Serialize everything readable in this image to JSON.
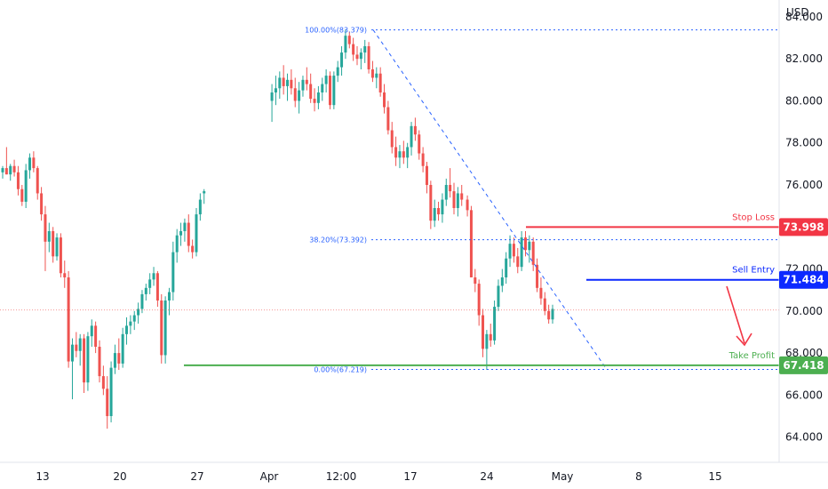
{
  "chart_data": {
    "type": "candlestick",
    "currency": "USD",
    "y_ticks": [
      "84.000",
      "82.000",
      "80.000",
      "78.000",
      "76.000",
      "74.000",
      "72.000",
      "70.000",
      "68.000",
      "66.000",
      "64.000"
    ],
    "x_ticks": [
      "13",
      "20",
      "27",
      "Apr",
      "12:00",
      "17",
      "24",
      "May",
      "8",
      "15"
    ],
    "ylim": [
      62.8,
      84.8
    ],
    "current_price": 70.05,
    "colors": {
      "up": "#26a69a",
      "down": "#ef5350",
      "stop": "#f23645",
      "entry": "#0c29ff",
      "profit": "#4caf50",
      "fib": "#2962ff"
    },
    "fib_levels": [
      {
        "label": "100.00%(83.379)",
        "value": 83.379
      },
      {
        "label": "38.20%(73.392)",
        "value": 73.392
      },
      {
        "label": "0.00%(67.219)",
        "value": 67.219
      }
    ],
    "levels": {
      "stop_loss": {
        "label": "Stop Loss",
        "value": 73.998,
        "badge": "73.998"
      },
      "sell_entry": {
        "label": "Sell Entry",
        "value": 71.484,
        "badge": "71.484"
      },
      "take_profit": {
        "label": "Take Profit",
        "value": 67.418,
        "badge": "67.418"
      }
    },
    "candles": [
      [
        76.6,
        76.9,
        76.3,
        76.8
      ],
      [
        76.8,
        77.8,
        76.5,
        76.5
      ],
      [
        76.5,
        77.0,
        76.2,
        76.9
      ],
      [
        76.9,
        77.2,
        76.4,
        76.6
      ],
      [
        76.6,
        76.9,
        75.5,
        75.8
      ],
      [
        75.8,
        76.0,
        75.0,
        75.2
      ],
      [
        75.2,
        77.0,
        74.9,
        76.7
      ],
      [
        76.7,
        77.5,
        76.3,
        77.3
      ],
      [
        77.3,
        77.6,
        76.6,
        76.8
      ],
      [
        76.8,
        76.9,
        75.3,
        75.6
      ],
      [
        75.6,
        75.9,
        74.3,
        74.6
      ],
      [
        74.6,
        75.0,
        71.9,
        73.3
      ],
      [
        73.3,
        74.2,
        72.8,
        73.8
      ],
      [
        73.8,
        74.0,
        72.3,
        72.6
      ],
      [
        72.6,
        73.7,
        72.4,
        73.5
      ],
      [
        73.5,
        73.7,
        71.6,
        71.8
      ],
      [
        71.8,
        72.4,
        71.1,
        71.6
      ],
      [
        71.6,
        71.9,
        67.3,
        67.6
      ],
      [
        67.6,
        68.7,
        65.8,
        68.4
      ],
      [
        68.4,
        69.0,
        67.8,
        68.1
      ],
      [
        68.1,
        68.9,
        67.4,
        68.7
      ],
      [
        68.7,
        68.9,
        66.1,
        66.6
      ],
      [
        66.6,
        69.0,
        66.2,
        68.8
      ],
      [
        68.8,
        69.6,
        68.3,
        69.3
      ],
      [
        69.3,
        69.5,
        68.0,
        68.3
      ],
      [
        68.3,
        68.6,
        66.6,
        66.9
      ],
      [
        66.9,
        67.4,
        66.0,
        66.3
      ],
      [
        66.3,
        66.9,
        64.4,
        65.0
      ],
      [
        65.0,
        67.6,
        64.7,
        67.3
      ],
      [
        67.3,
        68.4,
        67.0,
        68.0
      ],
      [
        68.0,
        68.7,
        67.2,
        67.5
      ],
      [
        67.5,
        69.2,
        67.3,
        68.9
      ],
      [
        68.9,
        69.7,
        68.4,
        69.3
      ],
      [
        69.3,
        69.8,
        68.9,
        69.5
      ],
      [
        69.5,
        70.0,
        69.1,
        69.8
      ],
      [
        69.8,
        70.4,
        69.4,
        70.1
      ],
      [
        70.1,
        71.0,
        69.9,
        70.8
      ],
      [
        70.8,
        71.3,
        70.5,
        71.1
      ],
      [
        71.1,
        71.8,
        70.8,
        71.5
      ],
      [
        71.5,
        72.1,
        71.2,
        71.8
      ],
      [
        71.8,
        71.9,
        70.2,
        70.5
      ],
      [
        70.5,
        70.8,
        67.5,
        67.9
      ],
      [
        67.9,
        70.7,
        67.5,
        70.5
      ],
      [
        70.5,
        71.1,
        69.8,
        70.9
      ],
      [
        70.9,
        73.3,
        70.5,
        72.8
      ],
      [
        72.8,
        73.9,
        72.3,
        73.6
      ],
      [
        73.6,
        74.2,
        73.1,
        73.8
      ],
      [
        73.8,
        74.4,
        73.3,
        74.2
      ],
      [
        74.2,
        74.6,
        72.8,
        73.1
      ],
      [
        73.1,
        73.4,
        72.5,
        72.8
      ],
      [
        72.8,
        74.9,
        72.6,
        74.6
      ],
      [
        74.6,
        75.6,
        74.3,
        75.3
      ],
      [
        75.6,
        75.8,
        75.1,
        75.7
      ],
      [
        80.0,
        80.8,
        79.0,
        80.4
      ],
      [
        80.4,
        81.2,
        79.8,
        80.6
      ],
      [
        80.6,
        81.4,
        80.1,
        81.1
      ],
      [
        81.1,
        81.7,
        80.3,
        80.7
      ],
      [
        80.7,
        81.3,
        80.0,
        81.0
      ],
      [
        81.0,
        81.5,
        80.3,
        80.6
      ],
      [
        80.6,
        81.1,
        79.7,
        80.0
      ],
      [
        80.0,
        80.9,
        79.4,
        80.5
      ],
      [
        80.5,
        81.2,
        80.2,
        81.0
      ],
      [
        81.0,
        81.6,
        80.5,
        80.8
      ],
      [
        80.8,
        81.3,
        79.9,
        80.1
      ],
      [
        80.1,
        80.6,
        79.5,
        79.9
      ],
      [
        79.9,
        80.7,
        79.6,
        80.4
      ],
      [
        80.4,
        81.1,
        80.0,
        80.8
      ],
      [
        80.8,
        81.5,
        80.4,
        81.2
      ],
      [
        81.2,
        81.4,
        79.6,
        79.8
      ],
      [
        79.8,
        81.4,
        79.6,
        81.2
      ],
      [
        81.2,
        81.9,
        80.9,
        81.6
      ],
      [
        81.6,
        82.6,
        81.2,
        82.3
      ],
      [
        82.3,
        83.4,
        82.0,
        83.1
      ],
      [
        83.1,
        83.3,
        82.5,
        82.7
      ],
      [
        82.7,
        83.0,
        81.9,
        82.2
      ],
      [
        82.2,
        82.6,
        81.7,
        82.0
      ],
      [
        82.0,
        82.5,
        81.5,
        82.3
      ],
      [
        82.3,
        82.9,
        81.8,
        82.6
      ],
      [
        82.6,
        82.8,
        81.3,
        81.5
      ],
      [
        81.5,
        81.9,
        80.9,
        81.1
      ],
      [
        81.1,
        81.6,
        80.6,
        81.3
      ],
      [
        81.3,
        81.6,
        80.2,
        80.4
      ],
      [
        80.4,
        80.8,
        79.4,
        79.7
      ],
      [
        79.7,
        80.0,
        78.4,
        78.6
      ],
      [
        78.6,
        79.0,
        77.5,
        77.8
      ],
      [
        77.8,
        78.3,
        76.9,
        77.3
      ],
      [
        77.3,
        77.9,
        76.8,
        77.6
      ],
      [
        77.6,
        78.1,
        77.0,
        77.3
      ],
      [
        77.3,
        78.0,
        76.8,
        77.8
      ],
      [
        77.8,
        79.0,
        77.4,
        78.8
      ],
      [
        78.8,
        79.2,
        78.1,
        78.4
      ],
      [
        78.4,
        78.6,
        77.2,
        77.5
      ],
      [
        77.5,
        77.8,
        76.6,
        76.9
      ],
      [
        76.9,
        77.1,
        75.6,
        76.0
      ],
      [
        76.0,
        76.2,
        73.9,
        74.3
      ],
      [
        74.3,
        75.3,
        74.0,
        74.9
      ],
      [
        74.9,
        75.2,
        74.3,
        74.6
      ],
      [
        74.6,
        75.6,
        74.2,
        75.3
      ],
      [
        75.3,
        76.3,
        75.0,
        76.0
      ],
      [
        76.0,
        76.8,
        75.4,
        75.7
      ],
      [
        75.7,
        76.1,
        74.6,
        74.9
      ],
      [
        74.9,
        75.9,
        74.5,
        75.6
      ],
      [
        75.6,
        76.0,
        75.0,
        75.3
      ],
      [
        75.3,
        75.5,
        74.5,
        74.8
      ],
      [
        74.8,
        75.0,
        71.6,
        71.6
      ],
      [
        71.6,
        72.0,
        70.9,
        71.3
      ],
      [
        71.3,
        71.5,
        69.3,
        69.8
      ],
      [
        69.8,
        70.1,
        67.8,
        68.2
      ],
      [
        68.2,
        69.1,
        67.2,
        68.9
      ],
      [
        68.9,
        69.4,
        68.3,
        68.6
      ],
      [
        68.6,
        70.5,
        68.4,
        70.2
      ],
      [
        70.2,
        71.5,
        70.0,
        71.2
      ],
      [
        71.2,
        72.0,
        70.9,
        71.6
      ],
      [
        71.6,
        72.8,
        71.3,
        72.5
      ],
      [
        72.5,
        73.6,
        72.1,
        73.2
      ],
      [
        73.2,
        73.5,
        72.3,
        72.6
      ],
      [
        72.6,
        73.0,
        71.8,
        72.1
      ],
      [
        72.1,
        73.8,
        71.9,
        73.5
      ],
      [
        73.5,
        73.8,
        72.6,
        72.9
      ],
      [
        72.9,
        73.6,
        72.3,
        73.3
      ],
      [
        73.3,
        73.5,
        71.9,
        72.2
      ],
      [
        72.2,
        72.5,
        70.9,
        71.1
      ],
      [
        71.1,
        71.6,
        70.3,
        70.6
      ],
      [
        70.6,
        70.9,
        69.8,
        70.0
      ],
      [
        70.0,
        70.3,
        69.4,
        69.6
      ],
      [
        69.6,
        70.3,
        69.4,
        70.1
      ]
    ]
  }
}
